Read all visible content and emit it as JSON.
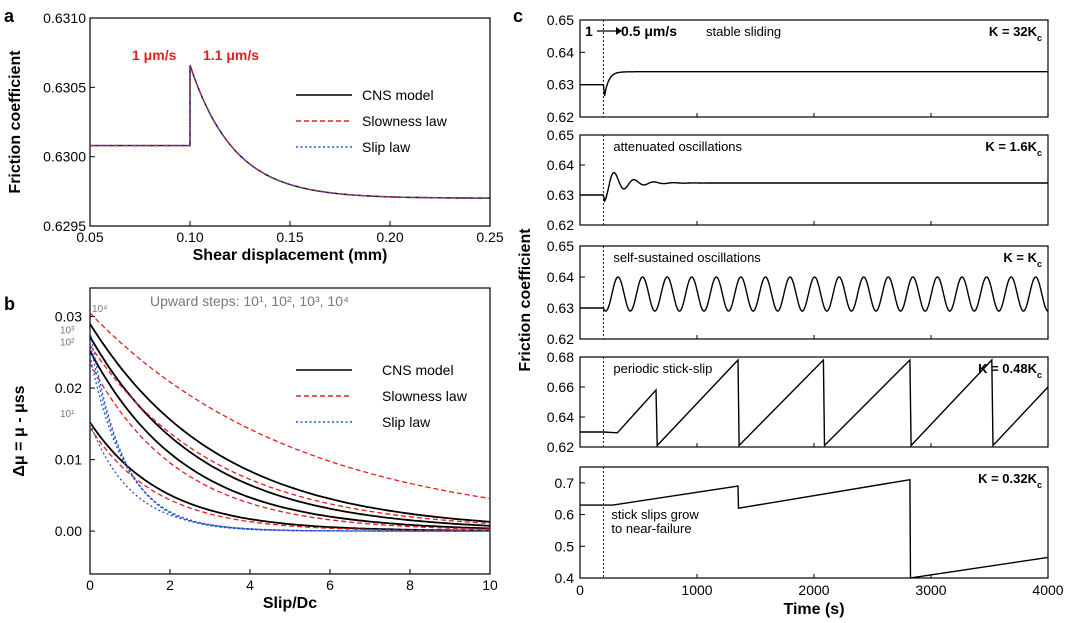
{
  "chart_data": [
    {
      "panel": "a",
      "type": "line",
      "xlabel": "Shear displacement (mm)",
      "ylabel": "Friction coefficient",
      "xlim": [
        0.05,
        0.25
      ],
      "ylim": [
        0.6295,
        0.631
      ],
      "xticks": [
        0.05,
        0.1,
        0.15,
        0.2,
        0.25
      ],
      "xtick_labels": [
        "0.05",
        "0.10",
        "0.15",
        "0.20",
        "0.25"
      ],
      "yticks": [
        0.6295,
        0.63,
        0.6305,
        0.631
      ],
      "ytick_labels": [
        "0.6295",
        "0.6300",
        "0.6305",
        "0.6310"
      ],
      "annotations": [
        "1 μm/s",
        "1.1 μm/s"
      ],
      "legend_position": "right",
      "series": [
        {
          "name": "CNS model",
          "style": "solid",
          "color": "#000000"
        },
        {
          "name": "Slowness law",
          "style": "dashed",
          "color": "#e02020"
        },
        {
          "name": "Slip law",
          "style": "dotted",
          "color": "#2255cc"
        }
      ],
      "curve": {
        "x_step": 0.1,
        "y_before": 0.63008,
        "y_peak": 0.63066,
        "y_final": 0.6297
      }
    },
    {
      "panel": "b",
      "type": "line",
      "xlabel": "Slip/Dc",
      "ylabel": "Δμ = μ - μss",
      "xlim": [
        0,
        10
      ],
      "ylim": [
        -0.006,
        0.034
      ],
      "xticks": [
        0,
        2,
        4,
        6,
        8,
        10
      ],
      "xtick_labels": [
        "0",
        "2",
        "4",
        "6",
        "8",
        "10"
      ],
      "yticks": [
        0.0,
        0.01,
        0.02,
        0.03
      ],
      "ytick_labels": [
        "0.00",
        "0.01",
        "0.02",
        "0.03"
      ],
      "title_text": "Upward steps: 10¹, 10²,  10³,  10⁴",
      "step_labels": [
        "10¹",
        "10²",
        "10³",
        "10⁴"
      ],
      "legend_position": "right",
      "series": [
        {
          "name": "CNS model",
          "style": "solid",
          "color": "#000000",
          "y0": [
            0.0152,
            0.0252,
            0.0272,
            0.029
          ],
          "decay": [
            0.55,
            0.42,
            0.36,
            0.31
          ]
        },
        {
          "name": "Slowness law",
          "style": "dashed",
          "color": "#e02020",
          "y0": [
            0.0145,
            0.0235,
            0.026,
            0.0305
          ],
          "decay": [
            0.6,
            0.45,
            0.32,
            0.19
          ]
        },
        {
          "name": "Slip law",
          "style": "dotted",
          "color": "#2255cc",
          "y0": [
            0.015,
            0.0245,
            0.0265,
            0.028
          ],
          "decay": [
            0.95,
            1.1,
            1.15,
            1.2
          ]
        }
      ]
    },
    {
      "panel": "c",
      "type": "line",
      "xlabel": "Time (s)",
      "ylabel": "Friction coefficient",
      "xlim": [
        0,
        4000
      ],
      "xticks": [
        0,
        1000,
        2000,
        3000,
        4000
      ],
      "xtick_labels": [
        "0",
        "1000",
        "2000",
        "3000",
        "4000"
      ],
      "vline_x": 200,
      "top_annotation": "1",
      "top_annotation_value": "0.5 μm/s",
      "subplots": [
        {
          "K": "K =  32K",
          "K_sub": "c",
          "note": "stable sliding",
          "ylim": [
            0.62,
            0.65
          ],
          "yticks": [
            "0.62",
            "0.63",
            "0.64",
            "0.65"
          ],
          "y_before": 0.63,
          "y_after": 0.634
        },
        {
          "K": "K = 1.6K",
          "K_sub": "c",
          "note": "attenuated oscillations",
          "ylim": [
            0.62,
            0.65
          ],
          "yticks": [
            "0.62",
            "0.63",
            "0.64",
            "0.65"
          ],
          "y_before": 0.63,
          "y_after": 0.634
        },
        {
          "K": "K = K",
          "K_sub": "c",
          "note": "self-sustained oscillations",
          "ylim": [
            0.62,
            0.65
          ],
          "yticks": [
            "0.62",
            "0.63",
            "0.64",
            "0.65"
          ],
          "y_before": 0.63,
          "osc_min": 0.629,
          "osc_max": 0.64,
          "osc_count": 18
        },
        {
          "K": "K = 0.48K",
          "K_sub": "c",
          "note": "periodic stick-slip",
          "ylim": [
            0.62,
            0.68
          ],
          "yticks": [
            "0.62",
            "0.64",
            "0.66",
            "0.68"
          ],
          "y_before": 0.63,
          "slip_times": [
            650,
            1350,
            2080,
            2820,
            3520
          ],
          "y_low": 0.621,
          "y_high": 0.678
        },
        {
          "K": "K = 0.32K",
          "K_sub": "c",
          "note": "stick slips grow",
          "note2": "to near-failure",
          "ylim": [
            0.4,
            0.75
          ],
          "yticks": [
            "0.4",
            "0.5",
            "0.6",
            "0.7"
          ],
          "y_before": 0.63,
          "slip_times": [
            1350,
            2820
          ],
          "slip_peaks": [
            0.69,
            0.71
          ],
          "slip_lows": [
            0.62,
            0.4
          ],
          "y_end": 0.465
        }
      ]
    }
  ]
}
